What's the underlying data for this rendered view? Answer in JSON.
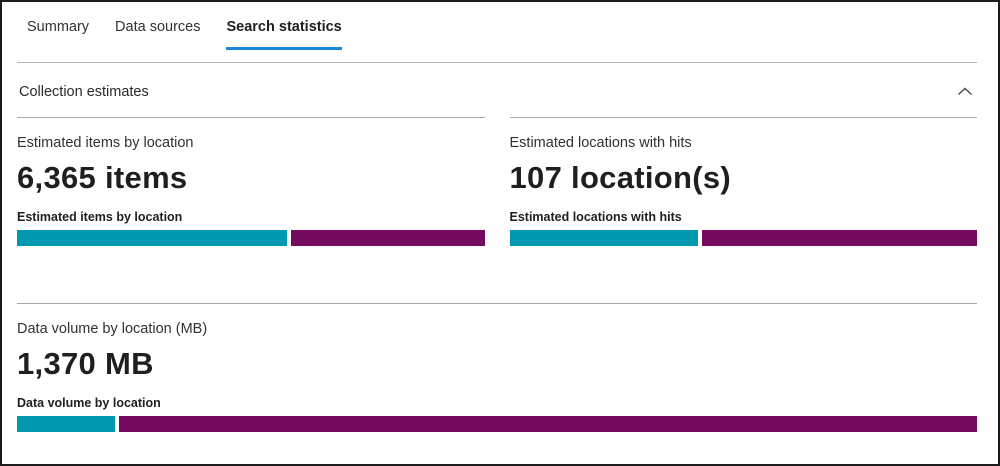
{
  "tabs": [
    {
      "label": "Summary",
      "active": false
    },
    {
      "label": "Data sources",
      "active": false
    },
    {
      "label": "Search statistics",
      "active": true
    }
  ],
  "collection_section": {
    "title": "Collection estimates",
    "collapse_icon": "chevron-up"
  },
  "cards": [
    {
      "label": "Estimated items by location",
      "value": "6,365 items",
      "chart_label": "Estimated items by location",
      "bar": {
        "segments": [
          {
            "name": "teal-segment",
            "color": "#0099b0",
            "width_pct": 58.2
          },
          {
            "name": "magenta-segment",
            "color": "#750b5e",
            "width_pct": 41.8
          }
        ]
      }
    },
    {
      "label": "Estimated locations with hits",
      "value": "107 location(s)",
      "chart_label": "Estimated locations with hits",
      "bar": {
        "segments": [
          {
            "name": "teal-segment",
            "color": "#0099b0",
            "width_pct": 40.6
          },
          {
            "name": "magenta-segment",
            "color": "#750b5e",
            "width_pct": 59.4
          }
        ]
      }
    },
    {
      "label": "Data volume by location (MB)",
      "value": "1,370 MB",
      "chart_label": "Data volume by location",
      "bar": {
        "segments": [
          {
            "name": "teal-segment",
            "color": "#0099b0",
            "width_pct": 10.2
          },
          {
            "name": "magenta-segment",
            "color": "#750b5e",
            "width_pct": 89.8
          }
        ]
      }
    }
  ],
  "colors": {
    "accent": "#1a86d9",
    "teal": "#0099b0",
    "magenta": "#750b5e",
    "divider": "#a9a7a5"
  }
}
